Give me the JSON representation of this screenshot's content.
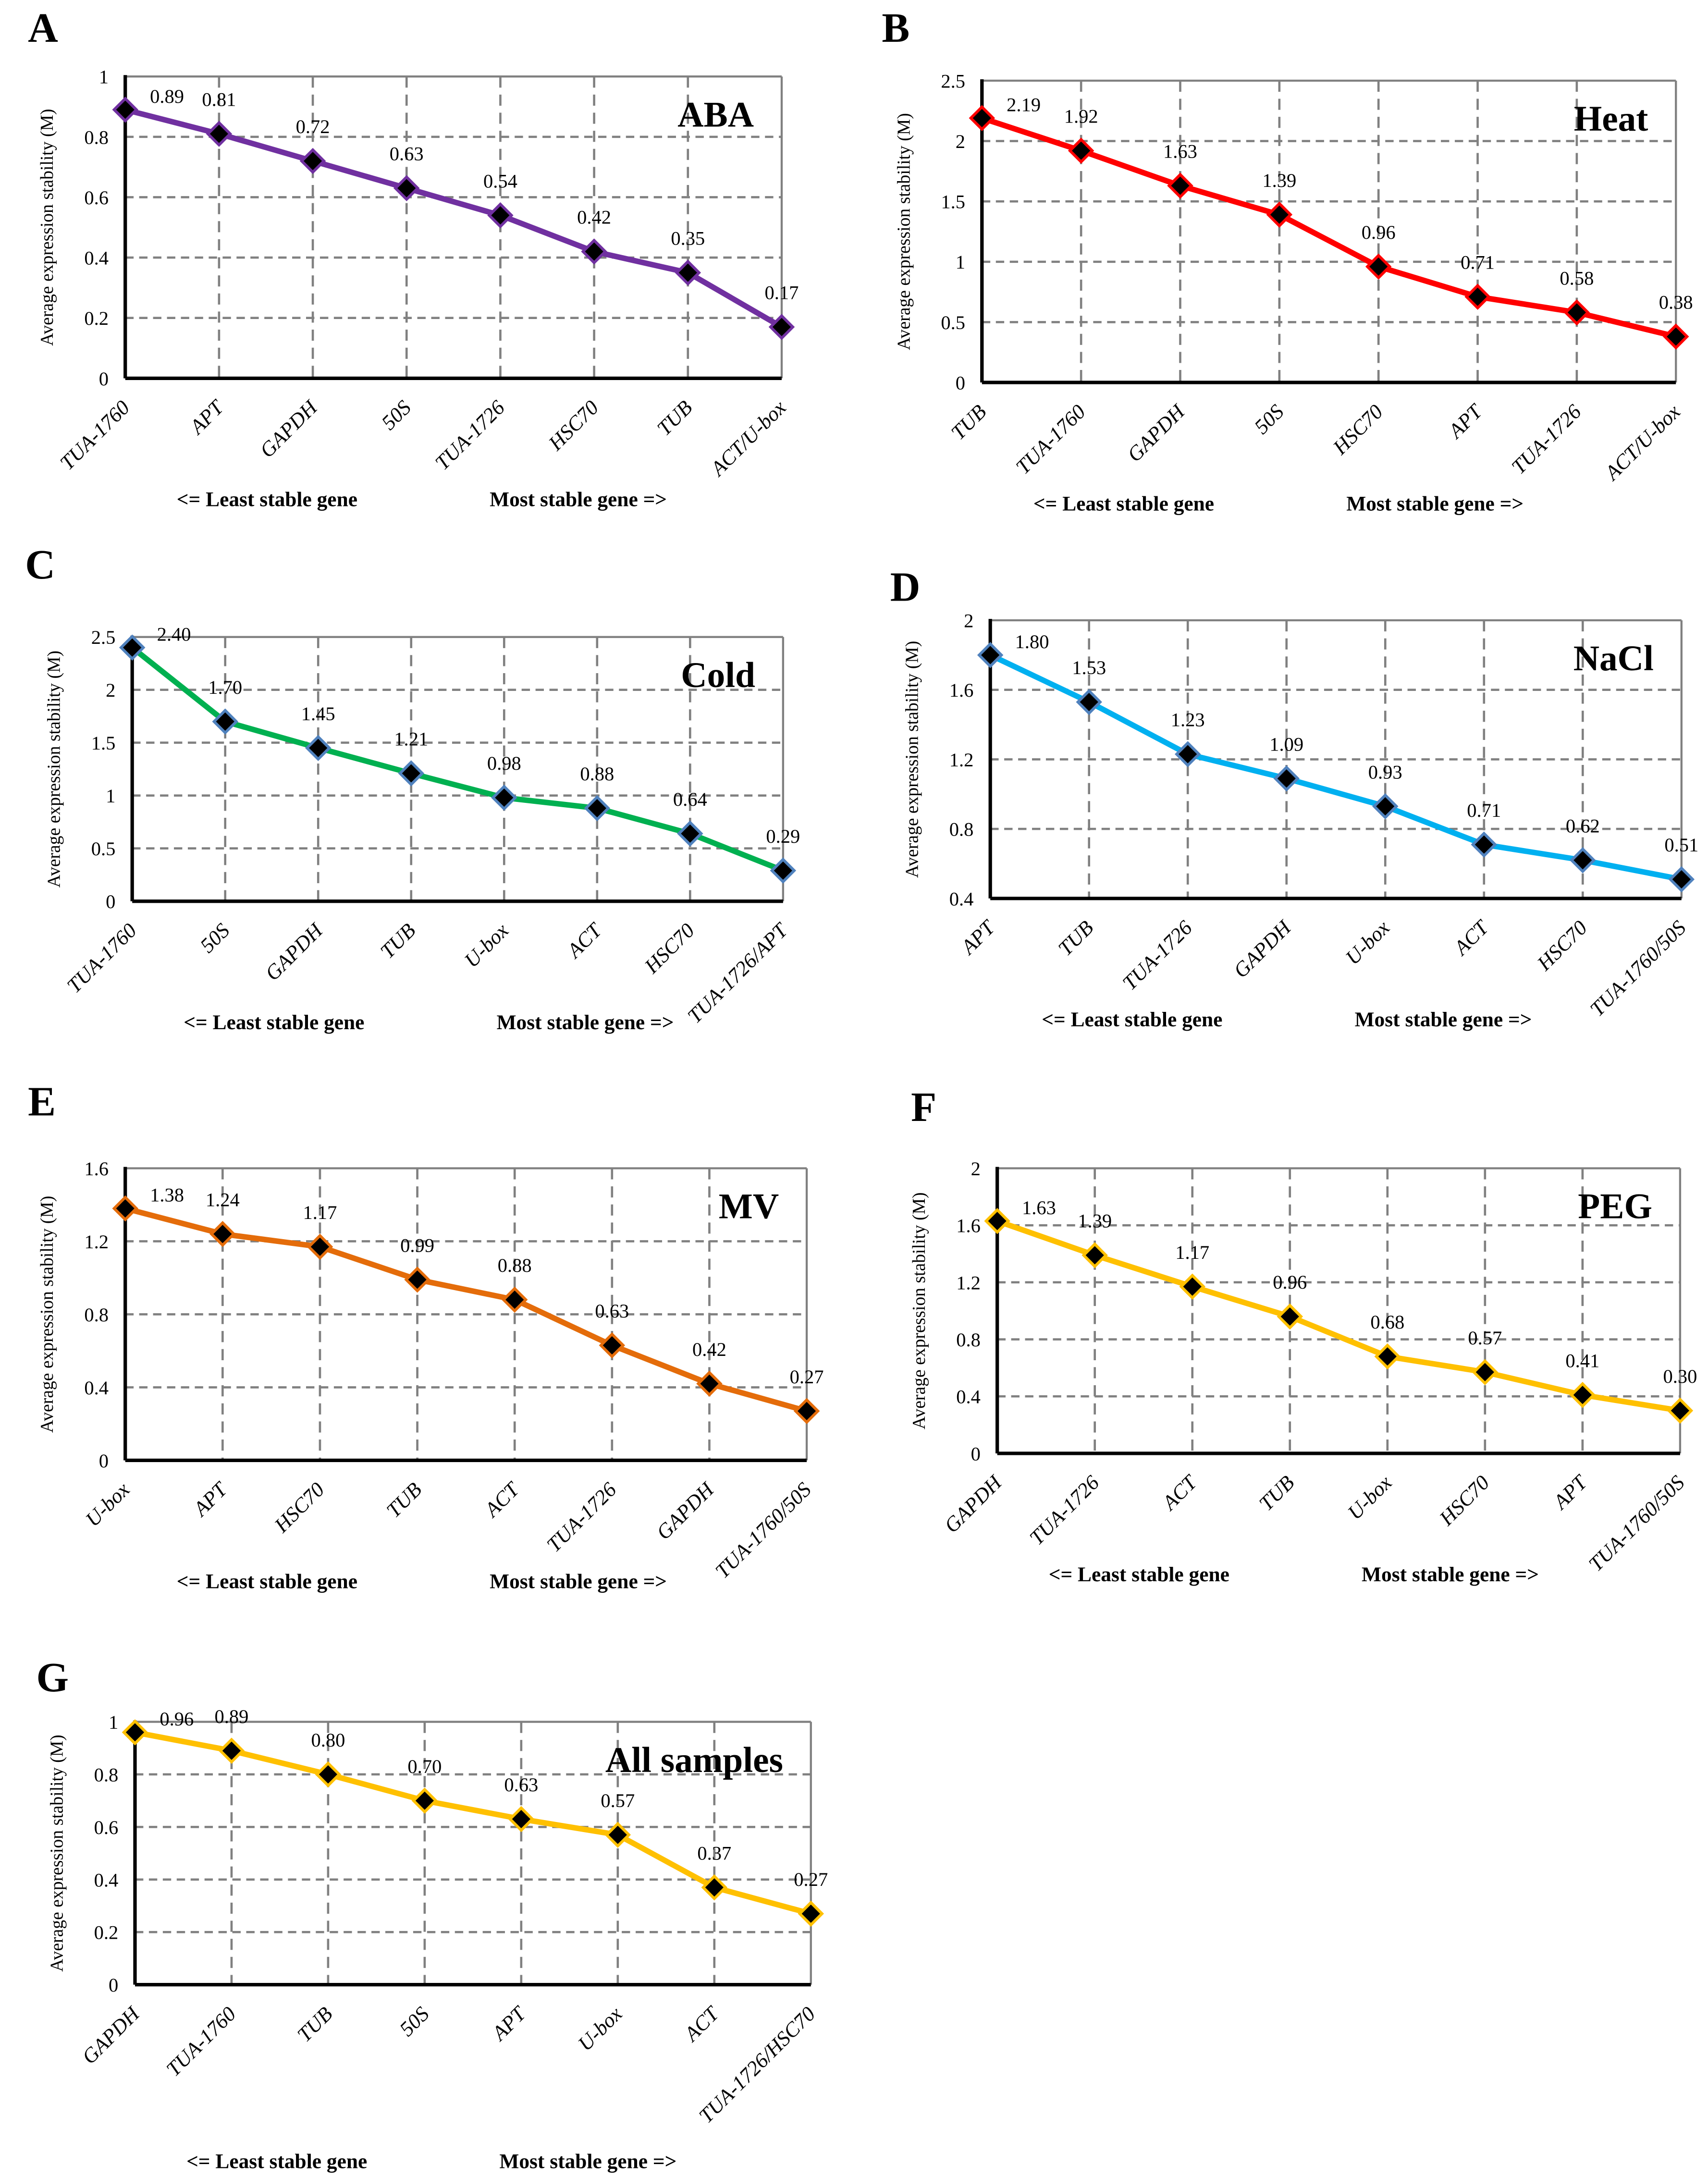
{
  "common": {
    "ylabel": "Average expression stability (M)",
    "footer_left": "<=  Least stable gene",
    "footer_right": "Most stable gene =>"
  },
  "chart_data": [
    {
      "panel": "A",
      "type": "line",
      "title": "ABA",
      "ylabel": "Average expression stability (M)",
      "ylim": [
        0,
        1
      ],
      "yticks": [
        "0",
        "0.2",
        "0.4",
        "0.6",
        "0.8",
        "1"
      ],
      "grid": true,
      "color": "#7030A0",
      "marker_edge": "#7030A0",
      "categories": [
        "TUA-1760",
        "APT",
        "GAPDH",
        "50S",
        "TUA-1726",
        "HSC70",
        "TUB",
        "ACT/U-box"
      ],
      "values": [
        0.89,
        0.81,
        0.72,
        0.63,
        0.54,
        0.42,
        0.35,
        0.17
      ],
      "data_labels": [
        "0.89",
        "0.81",
        "0.72",
        "0.63",
        "0.54",
        "0.42",
        "0.35",
        "0.17"
      ]
    },
    {
      "panel": "B",
      "type": "line",
      "title": "Heat",
      "ylabel": "Average expression stability (M)",
      "ylim": [
        0,
        2.5
      ],
      "yticks": [
        "0",
        "0.5",
        "1",
        "1.5",
        "2",
        "2.5"
      ],
      "grid": true,
      "color": "#FF0000",
      "marker_edge": "#FF0000",
      "categories": [
        "TUB",
        "TUA-1760",
        "GAPDH",
        "50S",
        "HSC70",
        "APT",
        "TUA-1726",
        "ACT/U-box"
      ],
      "values": [
        2.19,
        1.92,
        1.63,
        1.39,
        0.96,
        0.71,
        0.58,
        0.38
      ],
      "data_labels": [
        "2.19",
        "1.92",
        "1.63",
        "1.39",
        "0.96",
        "0.71",
        "0.58",
        "0.38"
      ]
    },
    {
      "panel": "C",
      "type": "line",
      "title": "Cold",
      "ylabel": "Average expression stability (M)",
      "ylim": [
        0,
        2.5
      ],
      "yticks": [
        "0",
        "0.5",
        "1",
        "1.5",
        "2",
        "2.5"
      ],
      "grid": true,
      "color": "#00B050",
      "marker_edge": "#4F81BD",
      "categories": [
        "TUA-1760",
        "50S",
        "GAPDH",
        "TUB",
        "U-box",
        "ACT",
        "HSC70",
        "TUA-1726/APT"
      ],
      "values": [
        2.4,
        1.7,
        1.45,
        1.21,
        0.98,
        0.88,
        0.64,
        0.29
      ],
      "data_labels": [
        "2.40",
        "1.70",
        "1.45",
        "1.21",
        "0.98",
        "0.88",
        "0.64",
        "0.29"
      ]
    },
    {
      "panel": "D",
      "type": "line",
      "title": "NaCl",
      "ylabel": "Average expression stability (M)",
      "ylim": [
        0.4,
        2
      ],
      "yticks": [
        "0.4",
        "0.8",
        "1.2",
        "1.6",
        "2"
      ],
      "grid": true,
      "color": "#00B0F0",
      "marker_edge": "#4F81BD",
      "categories": [
        "APT",
        "TUB",
        "TUA-1726",
        "GAPDH",
        "U-box",
        "ACT",
        "HSC70",
        "TUA-1760/50S"
      ],
      "values": [
        1.8,
        1.53,
        1.23,
        1.09,
        0.93,
        0.71,
        0.62,
        0.51
      ],
      "data_labels": [
        "1.80",
        "1.53",
        "1.23",
        "1.09",
        "0.93",
        "0.71",
        "0.62",
        "0.51"
      ]
    },
    {
      "panel": "E",
      "type": "line",
      "title": "MV",
      "ylabel": "Average expression stability (M)",
      "ylim": [
        0,
        1.6
      ],
      "yticks": [
        "0",
        "0.4",
        "0.8",
        "1.2",
        "1.6"
      ],
      "grid": true,
      "color": "#E46C0A",
      "marker_edge": "#E46C0A",
      "categories": [
        "U-box",
        "APT",
        "HSC70",
        "TUB",
        "ACT",
        "TUA-1726",
        "GAPDH",
        "TUA-1760/50S"
      ],
      "values": [
        1.38,
        1.24,
        1.17,
        0.99,
        0.88,
        0.63,
        0.42,
        0.27
      ],
      "data_labels": [
        "1.38",
        "1.24",
        "1.17",
        "0.99",
        "0.88",
        "0.63",
        "0.42",
        "0.27"
      ]
    },
    {
      "panel": "F",
      "type": "line",
      "title": "PEG",
      "ylabel": "Average expression stability (M)",
      "ylim": [
        0,
        2
      ],
      "yticks": [
        "0",
        "0.4",
        "0.8",
        "1.2",
        "1.6",
        "2"
      ],
      "grid": true,
      "color": "#FFC000",
      "marker_edge": "#FFC000",
      "categories": [
        "GAPDH",
        "TUA-1726",
        "ACT",
        "TUB",
        "U-box",
        "HSC70",
        "APT",
        "TUA-1760/50S"
      ],
      "values": [
        1.63,
        1.39,
        1.17,
        0.96,
        0.68,
        0.57,
        0.41,
        0.3
      ],
      "data_labels": [
        "1.63",
        "1.39",
        "1.17",
        "0.96",
        "0.68",
        "0.57",
        "0.41",
        "0.30"
      ]
    },
    {
      "panel": "G",
      "type": "line",
      "title": "All samples",
      "ylabel": "Average expression stability (M)",
      "ylim": [
        0,
        1
      ],
      "yticks": [
        "0",
        "0.2",
        "0.4",
        "0.6",
        "0.8",
        "1"
      ],
      "grid": true,
      "color": "#FFC000",
      "marker_edge": "#FFC000",
      "categories": [
        "GAPDH",
        "TUA-1760",
        "TUB",
        "50S",
        "APT",
        "U-box",
        "ACT",
        "TUA-1726/HSC70"
      ],
      "values": [
        0.96,
        0.89,
        0.8,
        0.7,
        0.63,
        0.57,
        0.37,
        0.27
      ],
      "data_labels": [
        "0.96",
        "0.89",
        "0.80",
        "0.70",
        "0.63",
        "0.57",
        "0.37",
        "0.27"
      ]
    }
  ]
}
